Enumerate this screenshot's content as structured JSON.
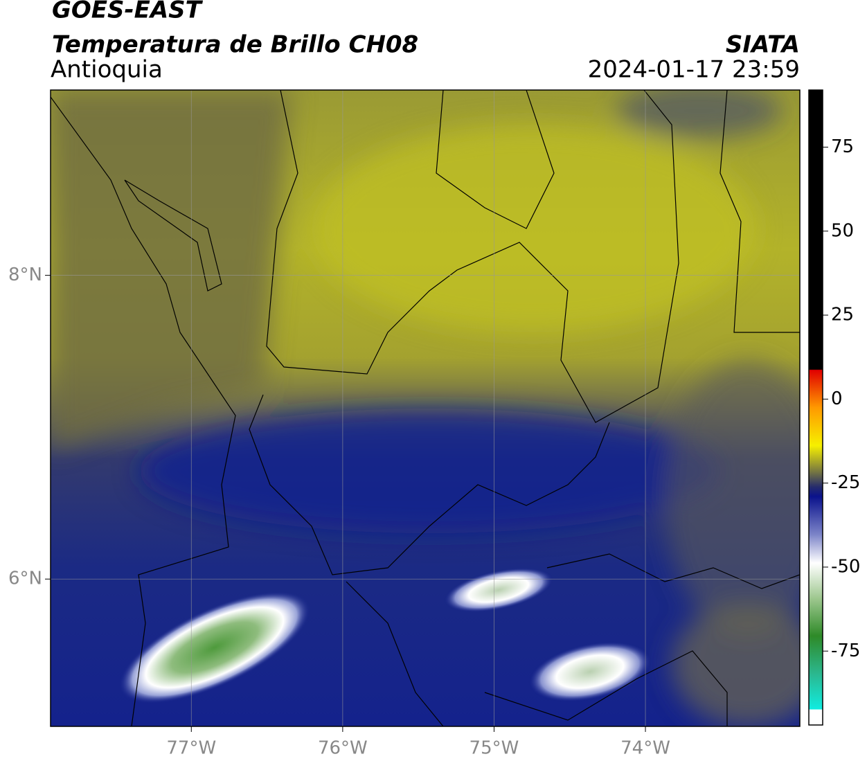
{
  "header": {
    "title": "GOES-EAST",
    "subtitle": "Temperatura de Brillo CH08",
    "region": "Antioquia",
    "source": "SIATA",
    "datetime": "2024-01-17 23:59"
  },
  "map": {
    "xlim": [
      -77.93,
      -72.98
    ],
    "ylim": [
      5.03,
      9.22
    ],
    "xticks": [
      {
        "value": -77,
        "label": "77°W"
      },
      {
        "value": -76,
        "label": "76°W"
      },
      {
        "value": -75,
        "label": "75°W"
      },
      {
        "value": -74,
        "label": "74°W"
      }
    ],
    "yticks": [
      {
        "value": 8,
        "label": "8°N"
      },
      {
        "value": 6,
        "label": "6°N"
      }
    ],
    "grid": true
  },
  "colorbar": {
    "lim": [
      -97,
      92
    ],
    "ticks": [
      75,
      50,
      25,
      0,
      -25,
      -50,
      -75
    ]
  }
}
